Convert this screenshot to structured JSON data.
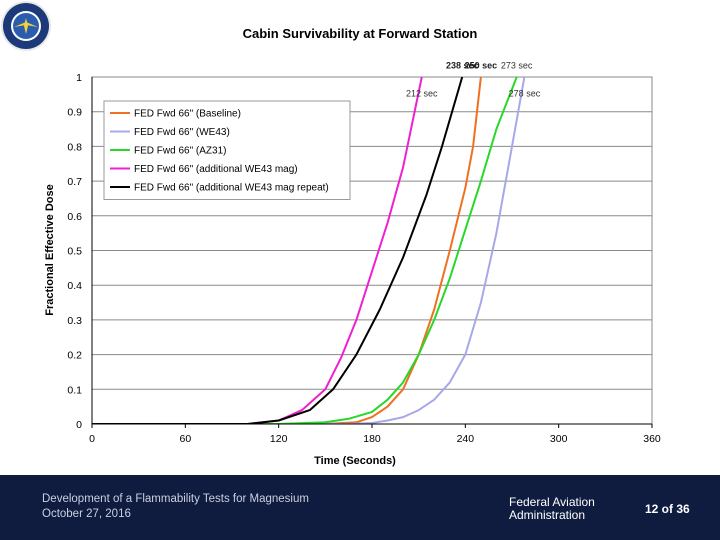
{
  "chart_data": {
    "type": "line",
    "title": "Cabin Survivability at Forward Station",
    "xlabel": "Time (Seconds)",
    "ylabel": "Fractional Effective Dose",
    "xlim": [
      0,
      360
    ],
    "ylim": [
      0,
      1
    ],
    "xticks": [
      0,
      60,
      120,
      180,
      240,
      300,
      360
    ],
    "yticks": [
      0,
      0.1,
      0.2,
      0.3,
      0.4,
      0.5,
      0.6,
      0.7,
      0.8,
      0.9,
      1
    ],
    "grid": "horizontal",
    "legend_position": "top-left",
    "series": [
      {
        "name": "FED Fwd 66\" (Baseline)",
        "color": "#f07020",
        "points": [
          [
            0,
            0
          ],
          [
            150,
            0
          ],
          [
            170,
            0.005
          ],
          [
            180,
            0.02
          ],
          [
            190,
            0.05
          ],
          [
            200,
            0.1
          ],
          [
            210,
            0.2
          ],
          [
            220,
            0.33
          ],
          [
            230,
            0.5
          ],
          [
            240,
            0.68
          ],
          [
            245,
            0.8
          ],
          [
            250,
            1
          ]
        ]
      },
      {
        "name": "FED Fwd 66\" (WE43)",
        "color": "#a8a8e8",
        "points": [
          [
            0,
            0
          ],
          [
            165,
            0
          ],
          [
            180,
            0.003
          ],
          [
            190,
            0.01
          ],
          [
            200,
            0.02
          ],
          [
            210,
            0.04
          ],
          [
            220,
            0.07
          ],
          [
            230,
            0.12
          ],
          [
            240,
            0.2
          ],
          [
            250,
            0.35
          ],
          [
            260,
            0.55
          ],
          [
            270,
            0.8
          ],
          [
            278,
            1
          ]
        ]
      },
      {
        "name": "FED Fwd 66\" (AZ31)",
        "color": "#28d828",
        "points": [
          [
            0,
            0
          ],
          [
            120,
            0
          ],
          [
            150,
            0.005
          ],
          [
            165,
            0.015
          ],
          [
            180,
            0.035
          ],
          [
            190,
            0.07
          ],
          [
            200,
            0.12
          ],
          [
            210,
            0.2
          ],
          [
            220,
            0.3
          ],
          [
            230,
            0.42
          ],
          [
            240,
            0.56
          ],
          [
            250,
            0.7
          ],
          [
            260,
            0.85
          ],
          [
            273,
            1
          ]
        ]
      },
      {
        "name": "FED Fwd 66\" (additional WE43 mag)",
        "color": "#f020d0",
        "points": [
          [
            0,
            0
          ],
          [
            100,
            0
          ],
          [
            120,
            0.01
          ],
          [
            135,
            0.04
          ],
          [
            150,
            0.1
          ],
          [
            160,
            0.19
          ],
          [
            170,
            0.3
          ],
          [
            180,
            0.44
          ],
          [
            190,
            0.58
          ],
          [
            200,
            0.74
          ],
          [
            212,
            1
          ]
        ]
      },
      {
        "name": "FED Fwd 66\" (additional WE43 mag repeat)",
        "color": "#000000",
        "points": [
          [
            0,
            0
          ],
          [
            100,
            0
          ],
          [
            120,
            0.01
          ],
          [
            140,
            0.04
          ],
          [
            155,
            0.1
          ],
          [
            170,
            0.2
          ],
          [
            185,
            0.33
          ],
          [
            200,
            0.48
          ],
          [
            215,
            0.66
          ],
          [
            225,
            0.8
          ],
          [
            238,
            1
          ]
        ]
      }
    ],
    "annotations": [
      {
        "text": "212 sec",
        "x": 212,
        "y": 0.95,
        "color": "#333333",
        "bold": false
      },
      {
        "text": "238 sec",
        "x": 238,
        "y": 1.03,
        "color": "#222222",
        "bold": true
      },
      {
        "text": "250 sec",
        "x": 250,
        "y": 1.03,
        "color": "#222222",
        "bold": true
      },
      {
        "text": "273 sec",
        "x": 273,
        "y": 1.03,
        "color": "#333333",
        "bold": false
      },
      {
        "text": "278 sec",
        "x": 278,
        "y": 0.95,
        "color": "#333333",
        "bold": false
      }
    ]
  },
  "footer": {
    "presentation_title": "Development of a Flammability Tests for Magnesium",
    "date": "October 27, 2016",
    "agency_line1": "Federal Aviation",
    "agency_line2": "Administration",
    "page": "12 of 36",
    "seal_icon": "faa-seal-icon",
    "background_color": "#0f1c3f"
  }
}
